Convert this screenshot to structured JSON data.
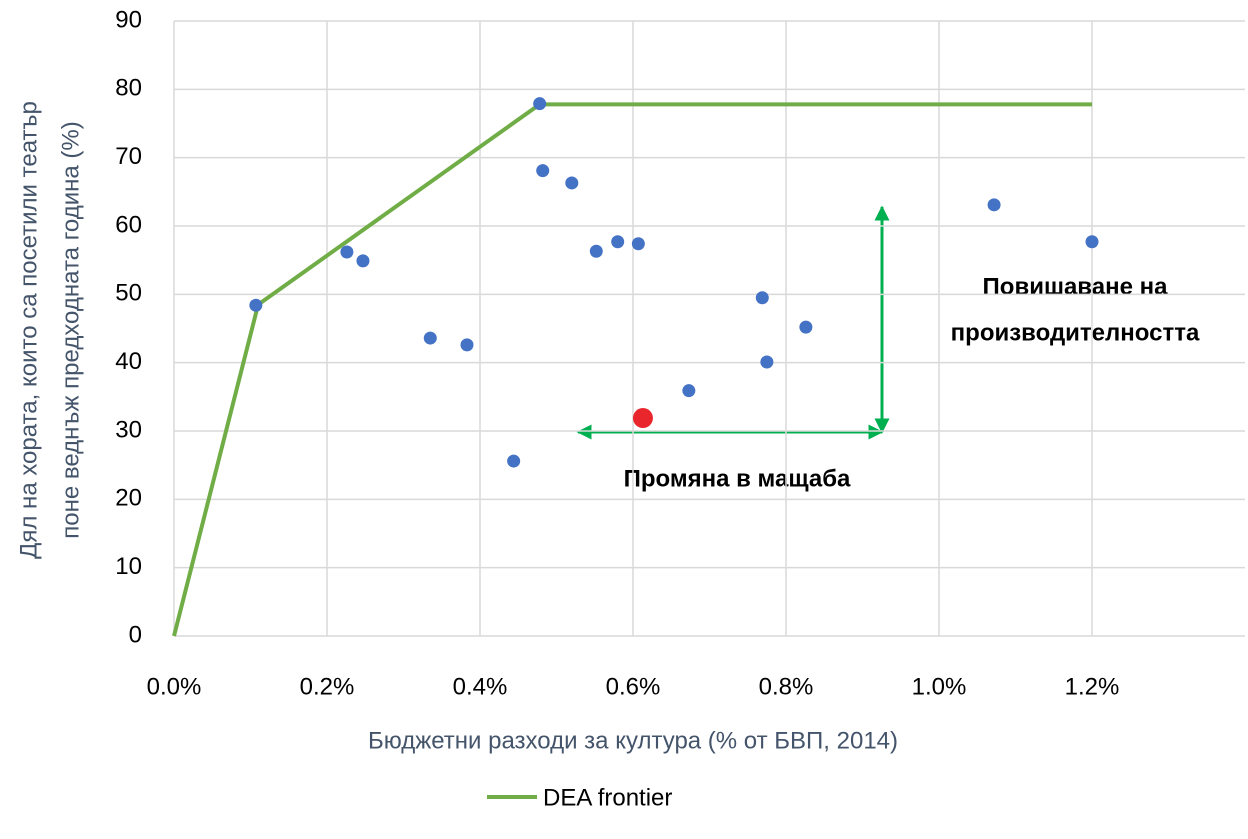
{
  "chart_data": {
    "type": "scatter",
    "xlabel": "Бюджетни разходи за култура (% от БВП, 2014)",
    "ylabel": [
      "Дял на хората, които са посетили театър",
      "поне веднъж предходната година (%)"
    ],
    "xlim": [
      0,
      1.4
    ],
    "xticks": [
      {
        "value": 0,
        "label": "0.0%"
      },
      {
        "value": 0.2,
        "label": "0.2%"
      },
      {
        "value": 0.4,
        "label": "0.4%"
      },
      {
        "value": 0.6,
        "label": "0.6%"
      },
      {
        "value": 0.8,
        "label": "0.8%"
      },
      {
        "value": 1.0,
        "label": "1.0%"
      },
      {
        "value": 1.2,
        "label": "1.2%"
      }
    ],
    "ylim": [
      0,
      90
    ],
    "yticks": [
      0,
      10,
      20,
      30,
      40,
      50,
      60,
      70,
      80,
      90
    ],
    "grid": true,
    "legend": "bottom",
    "annotations": [
      [
        "Повишаване на",
        "производителността"
      ],
      [
        "Промяна в мащаба"
      ]
    ],
    "series": [
      {
        "name": "DEA frontier",
        "type": "line",
        "color": "#70ad47",
        "x": [
          0,
          0.11,
          0.478,
          1.2
        ],
        "values": [
          0,
          48.5,
          77.8,
          77.8
        ]
      },
      {
        "type": "scatter",
        "color": "#4472c4",
        "x": [
          0.107,
          0.226,
          0.247,
          0.335,
          0.383,
          0.444,
          0.478,
          0.482,
          0.52,
          0.552,
          0.58,
          0.607,
          0.673,
          0.769,
          0.775,
          0.826,
          1.072,
          1.2
        ],
        "values": [
          48.4,
          56.2,
          54.9,
          43.6,
          42.6,
          25.6,
          77.9,
          68.1,
          66.3,
          56.3,
          57.7,
          57.4,
          35.9,
          49.5,
          40.1,
          45.2,
          63.1,
          57.7
        ]
      },
      {
        "type": "scatter",
        "color": "#e8262b",
        "x": [
          0.613
        ],
        "values": [
          31.9
        ]
      }
    ]
  }
}
